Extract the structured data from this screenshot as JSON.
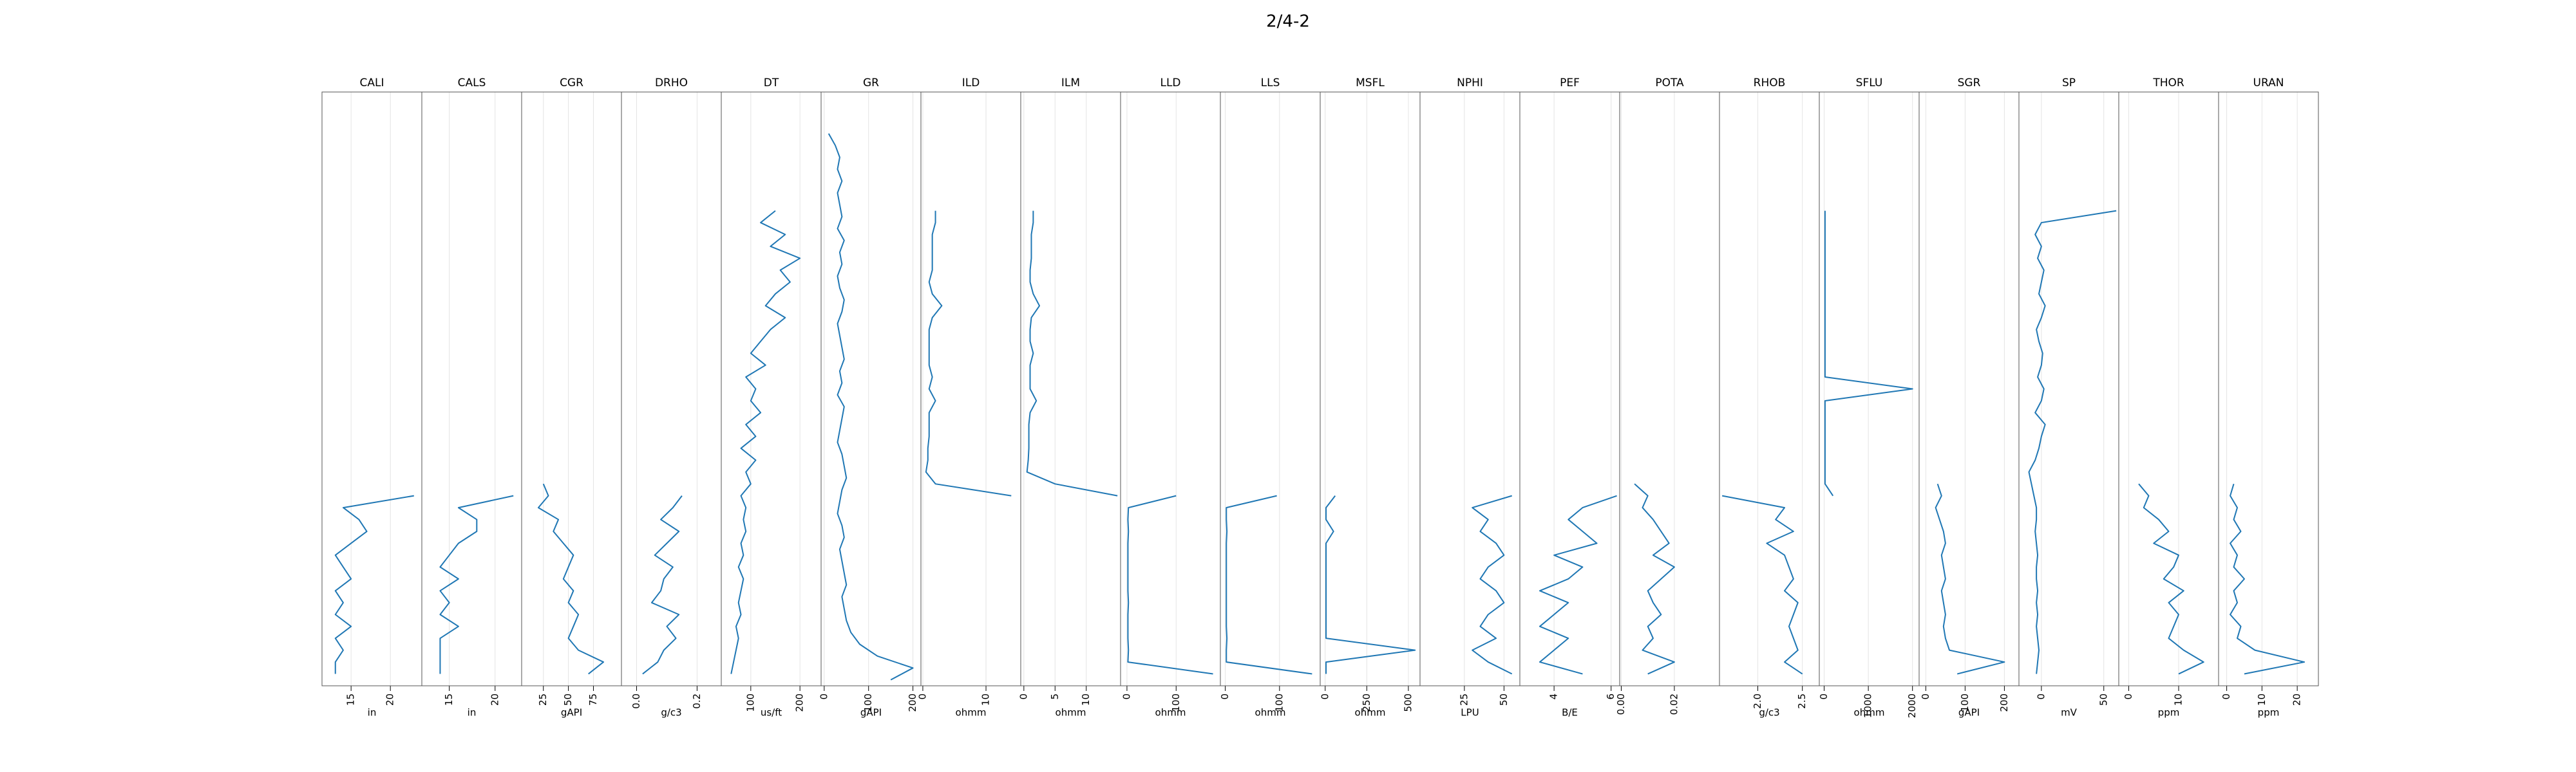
{
  "title": "2/4-2",
  "chart_data": [
    {
      "type": "line",
      "title": "CALI",
      "ylabel": "in",
      "color": "#1f77b4",
      "grid": true,
      "xlim": [
        0,
        100
      ],
      "ylim": [
        11.3,
        24
      ],
      "yticks": [
        15,
        20
      ],
      "x": [
        68,
        70,
        72,
        74,
        76,
        78,
        80,
        82,
        84,
        86,
        88,
        90,
        92,
        94,
        96,
        98
      ],
      "values": [
        23,
        14,
        16,
        17,
        15,
        13,
        14,
        15,
        13,
        14,
        13,
        15,
        13,
        14,
        13,
        13
      ]
    },
    {
      "type": "line",
      "title": "CALS",
      "ylabel": "in",
      "color": "#1f77b4",
      "grid": true,
      "xlim": [
        0,
        100
      ],
      "ylim": [
        12,
        22.9
      ],
      "yticks": [
        15,
        20
      ],
      "x": [
        68,
        70,
        72,
        74,
        76,
        78,
        80,
        82,
        84,
        86,
        88,
        90,
        92,
        94,
        96,
        98
      ],
      "values": [
        22,
        16,
        18,
        18,
        16,
        15,
        14,
        16,
        14,
        15,
        14,
        16,
        14,
        14,
        14,
        14
      ]
    },
    {
      "type": "line",
      "title": "CGR",
      "ylabel": "gAPI",
      "color": "#1f77b4",
      "grid": true,
      "xlim": [
        0,
        100
      ],
      "ylim": [
        3.3,
        103
      ],
      "yticks": [
        25,
        50,
        75
      ],
      "x": [
        66,
        68,
        70,
        72,
        74,
        76,
        78,
        80,
        82,
        84,
        86,
        88,
        90,
        92,
        94,
        96,
        98
      ],
      "values": [
        25,
        30,
        20,
        40,
        35,
        45,
        55,
        50,
        45,
        55,
        50,
        60,
        55,
        50,
        60,
        85,
        70
      ]
    },
    {
      "type": "line",
      "title": "DRHO",
      "ylabel": "g/c3",
      "color": "#1f77b4",
      "grid": true,
      "xlim": [
        0,
        100
      ],
      "ylim": [
        -0.05,
        0.28
      ],
      "yticks": [
        {
          "value": 0,
          "label": "0.0"
        },
        0.2
      ],
      "x": [
        68,
        70,
        72,
        74,
        76,
        78,
        80,
        82,
        84,
        86,
        88,
        90,
        92,
        94,
        96,
        98
      ],
      "values": [
        0.15,
        0.12,
        0.08,
        0.14,
        0.1,
        0.06,
        0.12,
        0.09,
        0.08,
        0.05,
        0.14,
        0.1,
        0.13,
        0.09,
        0.07,
        0.02
      ]
    },
    {
      "type": "line",
      "title": "DT",
      "ylabel": "us/ft",
      "color": "#1f77b4",
      "grid": true,
      "xlim": [
        0,
        100
      ],
      "ylim": [
        40,
        243
      ],
      "yticks": [
        100,
        200
      ],
      "x": [
        20,
        22,
        24,
        26,
        28,
        30,
        32,
        34,
        36,
        38,
        40,
        42,
        44,
        46,
        48,
        50,
        52,
        54,
        56,
        58,
        60,
        62,
        64,
        66,
        68,
        70,
        72,
        74,
        76,
        78,
        80,
        82,
        84,
        86,
        88,
        90,
        92,
        94,
        96,
        98
      ],
      "values": [
        150,
        120,
        170,
        140,
        200,
        160,
        180,
        150,
        130,
        170,
        140,
        120,
        100,
        130,
        90,
        110,
        100,
        120,
        90,
        110,
        80,
        110,
        90,
        100,
        80,
        90,
        85,
        90,
        80,
        85,
        75,
        85,
        80,
        75,
        80,
        70,
        75,
        70,
        65,
        60
      ]
    },
    {
      "type": "line",
      "title": "GR",
      "ylabel": "gAPI",
      "color": "#1f77b4",
      "grid": true,
      "xlim": [
        0,
        100
      ],
      "ylim": [
        -7,
        218
      ],
      "yticks": [
        0,
        100,
        200
      ],
      "x": [
        7,
        9,
        11,
        13,
        15,
        17,
        19,
        21,
        23,
        25,
        27,
        29,
        31,
        33,
        35,
        37,
        39,
        41,
        43,
        45,
        47,
        49,
        51,
        53,
        55,
        57,
        59,
        61,
        63,
        65,
        67,
        69,
        71,
        73,
        75,
        77,
        79,
        81,
        83,
        85,
        87,
        89,
        91,
        93,
        95,
        97,
        99
      ],
      "values": [
        10,
        25,
        35,
        30,
        40,
        30,
        35,
        40,
        30,
        45,
        35,
        40,
        30,
        35,
        45,
        40,
        30,
        35,
        40,
        45,
        35,
        40,
        30,
        45,
        40,
        35,
        30,
        40,
        45,
        50,
        40,
        35,
        30,
        40,
        45,
        35,
        40,
        45,
        50,
        40,
        45,
        50,
        60,
        80,
        120,
        200,
        150
      ]
    },
    {
      "type": "line",
      "title": "ILD",
      "ylabel": "ohmm",
      "color": "#1f77b4",
      "grid": true,
      "xlim": [
        0,
        100
      ],
      "ylim": [
        -0.3,
        15.5
      ],
      "yticks": [
        0,
        10
      ],
      "x": [
        20,
        22,
        24,
        26,
        28,
        30,
        32,
        34,
        36,
        38,
        40,
        42,
        44,
        46,
        48,
        50,
        52,
        54,
        56,
        58,
        60,
        62,
        64,
        66,
        68
      ],
      "values": [
        2,
        2,
        1.5,
        1.5,
        1.5,
        1.5,
        1,
        1.5,
        3,
        1.5,
        1,
        1,
        1,
        1,
        1.5,
        1,
        2,
        1,
        1,
        1,
        0.8,
        0.8,
        0.5,
        2,
        14
      ]
    },
    {
      "type": "line",
      "title": "ILM",
      "ylabel": "ohmm",
      "color": "#1f77b4",
      "grid": true,
      "xlim": [
        0,
        100
      ],
      "ylim": [
        -0.5,
        15.5
      ],
      "yticks": [
        0,
        5,
        10
      ],
      "x": [
        20,
        22,
        24,
        26,
        28,
        30,
        32,
        34,
        36,
        38,
        40,
        42,
        44,
        46,
        48,
        50,
        52,
        54,
        56,
        58,
        60,
        62,
        64,
        66,
        68
      ],
      "values": [
        1.5,
        1.5,
        1.2,
        1.2,
        1.2,
        1.0,
        1.0,
        1.5,
        2.5,
        1.2,
        1,
        1,
        1.5,
        1,
        1,
        1,
        2,
        1,
        0.8,
        0.8,
        0.8,
        0.7,
        0.5,
        5,
        15
      ]
    },
    {
      "type": "line",
      "title": "LLD",
      "ylabel": "ohmm",
      "color": "#1f77b4",
      "grid": true,
      "xlim": [
        0,
        100
      ],
      "ylim": [
        -13,
        190
      ],
      "yticks": [
        0,
        100
      ],
      "x": [
        68,
        70,
        72,
        74,
        76,
        78,
        80,
        82,
        84,
        86,
        88,
        90,
        92,
        94,
        96,
        98
      ],
      "values": [
        100,
        3,
        2,
        3,
        2,
        2,
        2,
        2,
        2,
        3,
        2,
        2,
        2,
        3,
        2,
        175
      ]
    },
    {
      "type": "line",
      "title": "LLS",
      "ylabel": "ohmm",
      "color": "#1f77b4",
      "grid": true,
      "xlim": [
        0,
        100
      ],
      "ylim": [
        -9,
        175
      ],
      "yticks": [
        0,
        100
      ],
      "x": [
        68,
        70,
        72,
        74,
        76,
        78,
        80,
        82,
        84,
        86,
        88,
        90,
        92,
        94,
        96,
        98
      ],
      "values": [
        95,
        2,
        2,
        3,
        2,
        2,
        2,
        2,
        2,
        2,
        2,
        2,
        3,
        2,
        2,
        160
      ]
    },
    {
      "type": "line",
      "title": "MSFL",
      "ylabel": "ohmm",
      "color": "#1f77b4",
      "grid": true,
      "xlim": [
        0,
        100
      ],
      "ylim": [
        -30,
        570
      ],
      "yticks": [
        0,
        250,
        500
      ],
      "x": [
        68,
        70,
        72,
        74,
        76,
        78,
        80,
        82,
        84,
        86,
        88,
        90,
        92,
        94,
        96,
        98
      ],
      "values": [
        60,
        5,
        5,
        50,
        5,
        5,
        5,
        5,
        5,
        5,
        5,
        5,
        5,
        540,
        5,
        5
      ]
    },
    {
      "type": "line",
      "title": "NPHI",
      "ylabel": "LPU",
      "color": "#1f77b4",
      "grid": true,
      "xlim": [
        0,
        100
      ],
      "ylim": [
        -3,
        60
      ],
      "yticks": [
        25,
        50
      ],
      "x": [
        68,
        70,
        72,
        74,
        76,
        78,
        80,
        82,
        84,
        86,
        88,
        90,
        92,
        94,
        96,
        98
      ],
      "values": [
        55,
        30,
        40,
        35,
        45,
        50,
        40,
        35,
        45,
        50,
        40,
        35,
        45,
        30,
        40,
        55
      ]
    },
    {
      "type": "line",
      "title": "PEF",
      "ylabel": "B/E",
      "color": "#1f77b4",
      "grid": true,
      "xlim": [
        0,
        100
      ],
      "ylim": [
        2.8,
        6.3
      ],
      "yticks": [
        4,
        6
      ],
      "x": [
        68,
        70,
        72,
        74,
        76,
        78,
        80,
        82,
        84,
        86,
        88,
        90,
        92,
        94,
        96,
        98
      ],
      "values": [
        6.2,
        5,
        4.5,
        5,
        5.5,
        4,
        5,
        4.5,
        3.5,
        4.5,
        4,
        3.5,
        4.5,
        4,
        3.5,
        5
      ]
    },
    {
      "type": "line",
      "title": "POTA",
      "color": "#1f77b4",
      "grid": true,
      "xlim": [
        0,
        100
      ],
      "ylim": [
        -0.0006,
        0.037
      ],
      "yticks": [
        {
          "value": 0,
          "label": "0.00"
        },
        0.02
      ],
      "x": [
        66,
        68,
        70,
        72,
        74,
        76,
        78,
        80,
        82,
        84,
        86,
        88,
        90,
        92,
        94,
        96,
        98
      ],
      "values": [
        0.005,
        0.01,
        0.008,
        0.012,
        0.015,
        0.018,
        0.012,
        0.02,
        0.015,
        0.01,
        0.012,
        0.015,
        0.01,
        0.012,
        0.008,
        0.02,
        0.01
      ]
    },
    {
      "type": "line",
      "title": "RHOB",
      "ylabel": "g/c3",
      "color": "#1f77b4",
      "grid": true,
      "xlim": [
        0,
        100
      ],
      "ylim": [
        1.57,
        2.69
      ],
      "yticks": [
        {
          "value": 2,
          "label": "2.0"
        },
        2.5
      ],
      "x": [
        68,
        70,
        72,
        74,
        76,
        78,
        80,
        82,
        84,
        86,
        88,
        90,
        92,
        94,
        96,
        98
      ],
      "values": [
        1.6,
        2.3,
        2.2,
        2.4,
        2.1,
        2.3,
        2.35,
        2.4,
        2.3,
        2.45,
        2.4,
        2.35,
        2.4,
        2.45,
        2.3,
        2.5
      ]
    },
    {
      "type": "line",
      "title": "SFLU",
      "ylabel": "ohmm",
      "color": "#1f77b4",
      "grid": true,
      "xlim": [
        0,
        100
      ],
      "ylim": [
        -110,
        2150
      ],
      "yticks": [
        0,
        1000,
        2000
      ],
      "x": [
        20,
        22,
        24,
        26,
        28,
        30,
        32,
        34,
        36,
        38,
        40,
        42,
        44,
        46,
        48,
        50,
        52,
        54,
        56,
        58,
        60,
        62,
        64,
        66,
        68
      ],
      "values": [
        20,
        20,
        20,
        20,
        20,
        20,
        20,
        20,
        20,
        20,
        20,
        20,
        20,
        20,
        20,
        2000,
        20,
        20,
        20,
        20,
        20,
        20,
        20,
        20,
        200
      ]
    },
    {
      "type": "line",
      "title": "SGR",
      "ylabel": "gAPI",
      "color": "#1f77b4",
      "grid": true,
      "xlim": [
        0,
        100
      ],
      "ylim": [
        -17,
        237
      ],
      "yticks": [
        0,
        100,
        200
      ],
      "x": [
        66,
        68,
        70,
        72,
        74,
        76,
        78,
        80,
        82,
        84,
        86,
        88,
        90,
        92,
        94,
        96,
        98
      ],
      "values": [
        30,
        40,
        25,
        35,
        45,
        50,
        40,
        45,
        50,
        40,
        45,
        50,
        45,
        50,
        60,
        200,
        80
      ]
    },
    {
      "type": "line",
      "title": "SP",
      "ylabel": "mV",
      "color": "#1f77b4",
      "grid": true,
      "xlim": [
        0,
        100
      ],
      "ylim": [
        -18,
        62
      ],
      "yticks": [
        0,
        50
      ],
      "x": [
        20,
        22,
        24,
        26,
        28,
        30,
        32,
        34,
        36,
        38,
        40,
        42,
        44,
        46,
        48,
        50,
        52,
        54,
        56,
        58,
        60,
        62,
        64,
        66,
        68,
        70,
        72,
        74,
        76,
        78,
        80,
        82,
        84,
        86,
        88,
        90,
        92,
        94,
        96,
        98
      ],
      "values": [
        60,
        0,
        -5,
        0,
        -3,
        2,
        0,
        -2,
        3,
        0,
        -4,
        -2,
        1,
        0,
        -3,
        2,
        0,
        -5,
        3,
        0,
        -2,
        -5,
        -10,
        -8,
        -6,
        -4,
        -4,
        -5,
        -4,
        -3,
        -4,
        -4,
        -3,
        -4,
        -3,
        -4,
        -3,
        -2,
        -3,
        -4
      ]
    },
    {
      "type": "line",
      "title": "THOR",
      "ylabel": "ppm",
      "color": "#1f77b4",
      "grid": true,
      "xlim": [
        0,
        100
      ],
      "ylim": [
        -2,
        18
      ],
      "yticks": [
        0,
        10
      ],
      "x": [
        66,
        68,
        70,
        72,
        74,
        76,
        78,
        80,
        82,
        84,
        86,
        88,
        90,
        92,
        94,
        96,
        98
      ],
      "values": [
        2,
        4,
        3,
        6,
        8,
        5,
        10,
        9,
        7,
        11,
        8,
        10,
        9,
        8,
        11,
        15,
        10
      ]
    },
    {
      "type": "line",
      "title": "URAN",
      "ylabel": "ppm",
      "color": "#1f77b4",
      "grid": true,
      "xlim": [
        0,
        100
      ],
      "ylim": [
        -2.3,
        26
      ],
      "yticks": [
        0,
        10,
        20
      ],
      "x": [
        66,
        68,
        70,
        72,
        74,
        76,
        78,
        80,
        82,
        84,
        86,
        88,
        90,
        92,
        94,
        96,
        98
      ],
      "values": [
        2,
        1,
        3,
        2,
        4,
        1,
        3,
        2,
        5,
        2,
        3,
        1,
        4,
        3,
        8,
        22,
        5
      ]
    }
  ]
}
